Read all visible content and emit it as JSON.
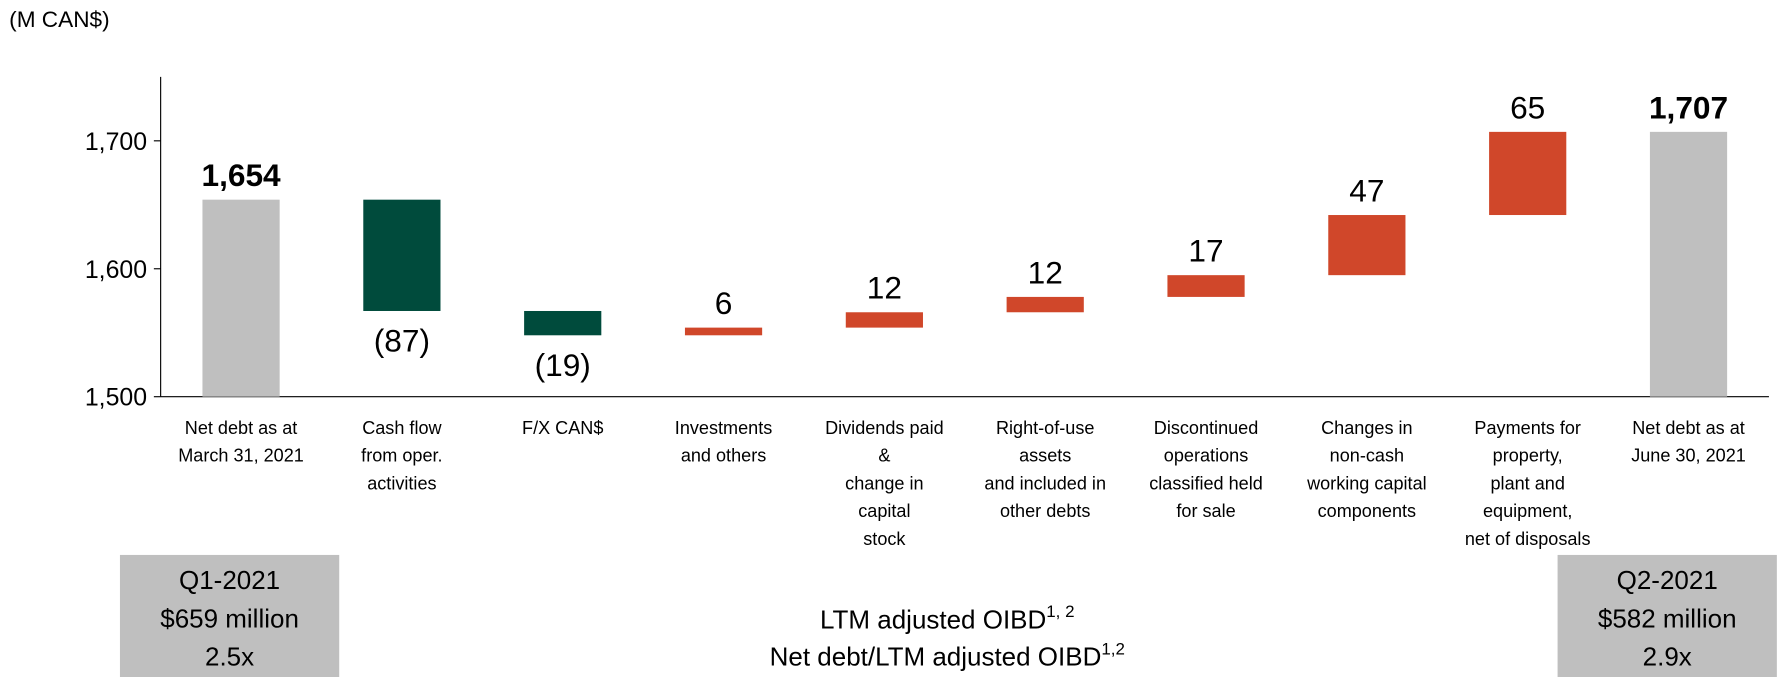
{
  "chart_data": {
    "type": "waterfall",
    "unit_label": "(M CAN$)",
    "categories": [
      [
        "Net debt as at",
        "March 31, 2021"
      ],
      [
        "Cash flow",
        "from oper.",
        "activities"
      ],
      [
        "F/X CAN$"
      ],
      [
        "Investments",
        "and others"
      ],
      [
        "Dividends paid",
        "&",
        "change in",
        "capital",
        "stock"
      ],
      [
        "Right-of-use",
        "assets",
        "and included in",
        "other debts"
      ],
      [
        "Discontinued",
        "operations",
        "classified held",
        "for sale"
      ],
      [
        "Changes in",
        "non-cash",
        "working capital",
        "components"
      ],
      [
        "Payments for",
        "property,",
        "plant and",
        "equipment,",
        "net of disposals"
      ],
      [
        "Net debt as at",
        "June 30, 2021"
      ]
    ],
    "measures": [
      "total",
      "relative",
      "relative",
      "relative",
      "relative",
      "relative",
      "relative",
      "relative",
      "relative",
      "total"
    ],
    "values": [
      1654,
      -87,
      -19,
      6,
      12,
      12,
      17,
      47,
      65,
      1707
    ],
    "value_labels": [
      "1,654",
      "(87)",
      "(19)",
      "6",
      "12",
      "12",
      "17",
      "47",
      "65",
      "1,707"
    ],
    "colors": {
      "total": "#bfbfbf",
      "decrease": "#004b3c",
      "increase": "#d0472a"
    },
    "ylim": [
      1500,
      1750
    ],
    "yticks": [
      {
        "value": 1500,
        "label": "1,500"
      },
      {
        "value": 1600,
        "label": "1,600"
      },
      {
        "value": 1700,
        "label": "1,700"
      }
    ],
    "footer": {
      "left": [
        "Q1-2021",
        "$659 million",
        "2.5x"
      ],
      "center": [
        {
          "text": "LTM adjusted OIBD",
          "sup": "1, 2"
        },
        {
          "text": "Net debt/LTM adjusted OIBD",
          "sup": "1,2"
        }
      ],
      "right": [
        "Q2-2021",
        "$582 million",
        "2.9x"
      ]
    }
  }
}
